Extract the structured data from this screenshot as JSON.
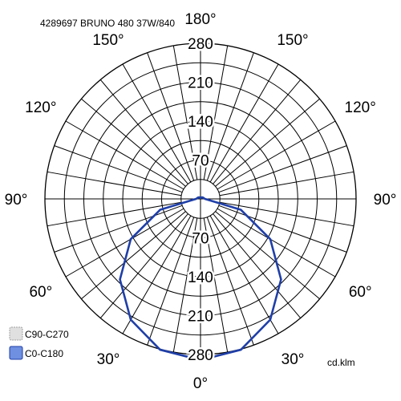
{
  "chart_data": {
    "type": "polar",
    "title": "4289697 BRUNO 480 37W/840",
    "unit_label": "cd.klm",
    "radial_ticks": [
      70,
      140,
      210,
      280
    ],
    "radial_max": 280,
    "angle_labels": [
      {
        "text": "180°",
        "angle": 180
      },
      {
        "text": "150°",
        "angle": 150
      },
      {
        "text": "150°",
        "angle": -150
      },
      {
        "text": "120°",
        "angle": 120
      },
      {
        "text": "120°",
        "angle": -120
      },
      {
        "text": "90°",
        "angle": 90
      },
      {
        "text": "90°",
        "angle": -90
      },
      {
        "text": "60°",
        "angle": 60
      },
      {
        "text": "60°",
        "angle": -60
      },
      {
        "text": "30°",
        "angle": 30
      },
      {
        "text": "30°",
        "angle": -30
      },
      {
        "text": "0°",
        "angle": 0
      }
    ],
    "grid": true,
    "legend_position": "bottom-left",
    "series": [
      {
        "name": "C90-C270",
        "color": "#c8c8c8",
        "visible_curve": false,
        "angles": [
          0,
          15,
          30,
          45,
          60,
          75,
          90,
          105,
          120,
          135,
          150,
          165,
          180
        ],
        "values": [
          0,
          0,
          0,
          0,
          0,
          0,
          0,
          0,
          0,
          0,
          0,
          0,
          0
        ]
      },
      {
        "name": "C0-C180",
        "color": "#1f3fa8",
        "visible_curve": true,
        "angles": [
          0,
          15,
          30,
          45,
          60,
          75,
          90,
          105,
          120,
          135,
          150,
          165,
          180
        ],
        "values": [
          290,
          281,
          251,
          205,
          145,
          75,
          8,
          6,
          5,
          4,
          3,
          2,
          2
        ]
      }
    ]
  }
}
